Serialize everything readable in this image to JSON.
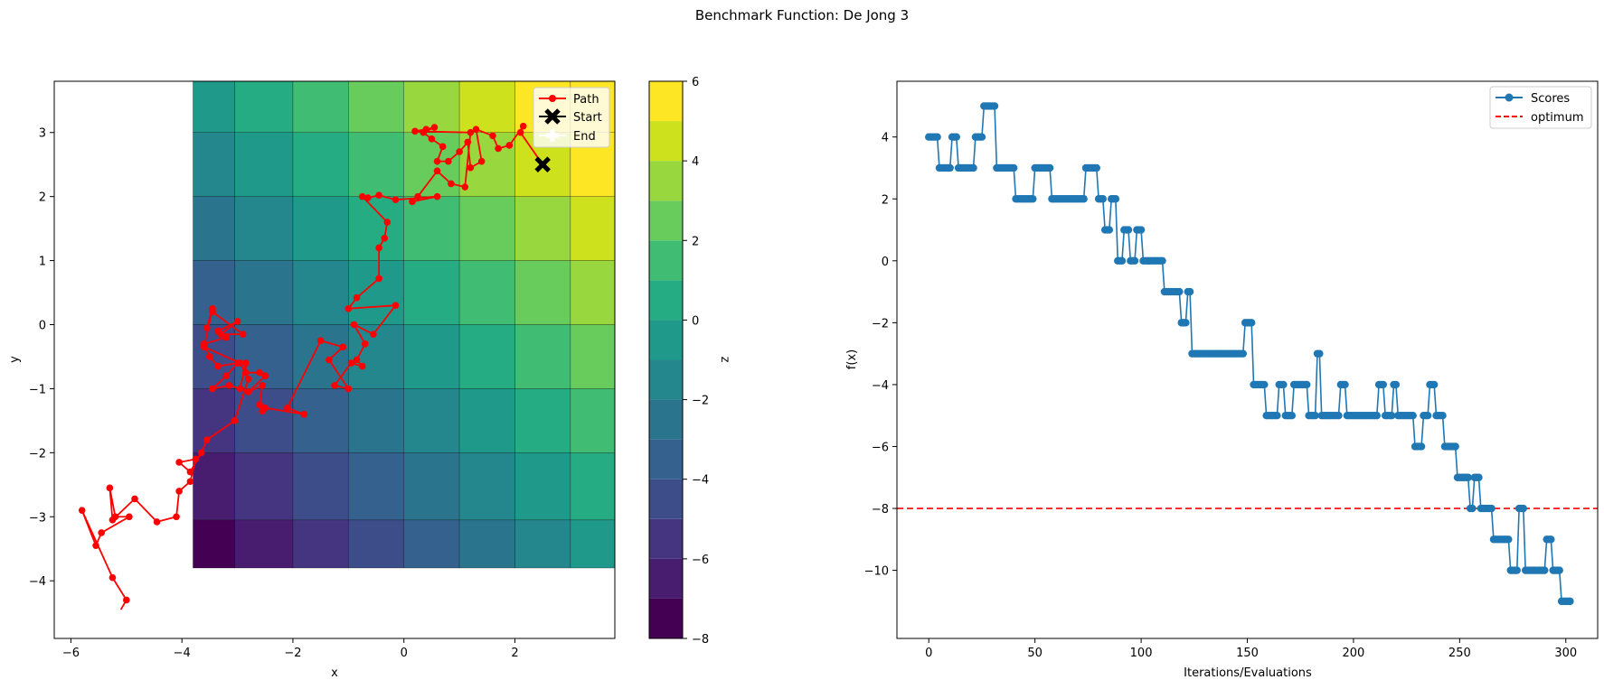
{
  "figure": {
    "suptitle": "Benchmark Function: De Jong 3"
  },
  "chart_data": [
    {
      "type": "heatmap",
      "subtype": "filled-contour-with-path",
      "title": "",
      "xlabel": "x",
      "ylabel": "y",
      "xlim": [
        -6.3,
        3.8
      ],
      "ylim": [
        -4.9,
        3.8
      ],
      "xticks": [
        -6,
        -4,
        -2,
        0,
        2
      ],
      "yticks": [
        -4,
        -3,
        -2,
        -1,
        0,
        1,
        2,
        3
      ],
      "surface": {
        "grid_x_edges": [
          -3.8,
          -3.05,
          -2,
          -1,
          0,
          1,
          2,
          3,
          3.8
        ],
        "grid_y_edges": [
          -3.8,
          -3.05,
          -2,
          -1,
          0,
          1,
          2,
          3,
          3.8
        ],
        "z_formula": "floor(x) + floor(y)"
      },
      "colorbar": {
        "label": "z",
        "levels": [
          -8,
          -7,
          -6,
          -5,
          -4,
          -3,
          -2,
          -1,
          0,
          1,
          2,
          3,
          4,
          5,
          6
        ],
        "ticks": [
          -8,
          -6,
          -4,
          -2,
          0,
          2,
          4,
          6
        ],
        "colors": [
          "#440154",
          "#481c6e",
          "#453581",
          "#3d4d8a",
          "#34618d",
          "#2b748e",
          "#24878e",
          "#1f998a",
          "#25ac82",
          "#40bd72",
          "#67cc5c",
          "#98d83e",
          "#cde11d",
          "#fde725"
        ]
      },
      "legend": {
        "position": "top-right",
        "entries": [
          {
            "label": "Path",
            "color": "#ff0000",
            "marker": "circle-line"
          },
          {
            "label": "Start",
            "color": "#000000",
            "marker": "x"
          },
          {
            "label": "End",
            "color": "#ffffff",
            "marker": "plus"
          }
        ]
      },
      "start": {
        "x": 2.5,
        "y": 2.5
      },
      "path": {
        "name": "Path",
        "color": "#ff0000",
        "points": [
          [
            2.5,
            2.5
          ],
          [
            2.1,
            3.0
          ],
          [
            2.15,
            3.1
          ],
          [
            1.9,
            2.8
          ],
          [
            1.7,
            2.75
          ],
          [
            1.6,
            2.95
          ],
          [
            1.3,
            3.05
          ],
          [
            1.4,
            2.55
          ],
          [
            1.2,
            2.45
          ],
          [
            1.15,
            2.85
          ],
          [
            1.0,
            2.7
          ],
          [
            0.8,
            2.55
          ],
          [
            0.6,
            2.55
          ],
          [
            0.7,
            2.78
          ],
          [
            0.5,
            2.9
          ],
          [
            0.35,
            3.0
          ],
          [
            0.55,
            3.08
          ],
          [
            0.4,
            3.05
          ],
          [
            0.2,
            3.02
          ],
          [
            1.2,
            3.0
          ],
          [
            1.1,
            2.15
          ],
          [
            0.85,
            2.2
          ],
          [
            0.6,
            2.4
          ],
          [
            0.25,
            2.0
          ],
          [
            0.15,
            1.92
          ],
          [
            0.6,
            2.0
          ],
          [
            -0.15,
            1.95
          ],
          [
            -0.45,
            2.02
          ],
          [
            -0.65,
            1.98
          ],
          [
            -0.75,
            2.0
          ],
          [
            -0.3,
            1.6
          ],
          [
            -0.35,
            1.35
          ],
          [
            -0.45,
            1.2
          ],
          [
            -0.45,
            0.72
          ],
          [
            -0.85,
            0.42
          ],
          [
            -1.0,
            0.25
          ],
          [
            -0.15,
            0.3
          ],
          [
            -0.55,
            -0.15
          ],
          [
            -0.9,
            0.0
          ],
          [
            -0.7,
            -0.3
          ],
          [
            -0.85,
            -0.55
          ],
          [
            -0.75,
            -0.65
          ],
          [
            -0.95,
            -0.6
          ],
          [
            -1.25,
            -0.95
          ],
          [
            -1.0,
            -1.0
          ],
          [
            -1.35,
            -0.55
          ],
          [
            -1.1,
            -0.35
          ],
          [
            -1.5,
            -0.25
          ],
          [
            -2.1,
            -1.3
          ],
          [
            -1.8,
            -1.4
          ],
          [
            -2.5,
            -1.3
          ],
          [
            -2.55,
            -1.35
          ],
          [
            -2.6,
            -1.25
          ],
          [
            -2.55,
            -0.95
          ],
          [
            -2.8,
            -1.05
          ],
          [
            -2.5,
            -0.8
          ],
          [
            -2.6,
            -0.75
          ],
          [
            -2.85,
            -0.75
          ],
          [
            -2.85,
            -0.6
          ],
          [
            -2.95,
            -1.0
          ],
          [
            -3.15,
            -0.95
          ],
          [
            -3.45,
            -1.0
          ],
          [
            -3.2,
            -0.8
          ],
          [
            -3.0,
            -0.6
          ],
          [
            -3.35,
            -0.65
          ],
          [
            -3.5,
            -0.5
          ],
          [
            -3.6,
            -0.3
          ],
          [
            -3.2,
            -0.2
          ],
          [
            -3.35,
            -0.1
          ],
          [
            -3.0,
            0.05
          ],
          [
            -3.3,
            -0.15
          ],
          [
            -2.9,
            -0.15
          ],
          [
            -3.45,
            0.2
          ],
          [
            -3.55,
            -0.05
          ],
          [
            -3.45,
            0.25
          ],
          [
            -3.6,
            -0.35
          ],
          [
            -2.95,
            -0.6
          ],
          [
            -2.8,
            -0.85
          ],
          [
            -3.05,
            -1.5
          ],
          [
            -3.55,
            -1.8
          ],
          [
            -3.65,
            -2.0
          ],
          [
            -3.85,
            -2.3
          ],
          [
            -4.05,
            -2.15
          ],
          [
            -3.75,
            -2.1
          ],
          [
            -3.85,
            -2.45
          ],
          [
            -4.05,
            -2.6
          ],
          [
            -4.1,
            -3.0
          ],
          [
            -4.45,
            -3.08
          ],
          [
            -4.85,
            -2.72
          ],
          [
            -5.25,
            -3.05
          ],
          [
            -5.3,
            -2.55
          ],
          [
            -5.2,
            -3.0
          ],
          [
            -4.95,
            -3.0
          ],
          [
            -5.45,
            -3.25
          ],
          [
            -5.55,
            -3.45
          ],
          [
            -5.8,
            -2.9
          ],
          [
            -5.25,
            -3.95
          ],
          [
            -5.0,
            -4.3
          ],
          [
            -5.1,
            -4.45
          ]
        ]
      }
    },
    {
      "type": "line",
      "title": "",
      "xlabel": "Iterations/Evaluations",
      "ylabel": "f(x)",
      "xlim": [
        -15,
        315
      ],
      "ylim": [
        -12.2,
        5.8
      ],
      "xticks": [
        0,
        50,
        100,
        150,
        200,
        250,
        300
      ],
      "yticks": [
        -10,
        -8,
        -6,
        -4,
        -2,
        0,
        2,
        4
      ],
      "legend": {
        "position": "top-right",
        "entries": [
          {
            "label": "Scores",
            "color": "#1f77b4",
            "marker": "circle-line"
          },
          {
            "label": "optimum",
            "color": "#ff0000",
            "marker": "dashed"
          }
        ]
      },
      "hline": {
        "name": "optimum",
        "y": -8,
        "color": "#ff0000",
        "style": "dashed"
      },
      "series": [
        {
          "name": "Scores",
          "color": "#1f77b4",
          "steps": [
            [
              0,
              4
            ],
            [
              4,
              4
            ],
            [
              5,
              3
            ],
            [
              10,
              3
            ],
            [
              11,
              4
            ],
            [
              13,
              4
            ],
            [
              14,
              3
            ],
            [
              21,
              3
            ],
            [
              22,
              4
            ],
            [
              25,
              4
            ],
            [
              26,
              5
            ],
            [
              31,
              5
            ],
            [
              32,
              3
            ],
            [
              40,
              3
            ],
            [
              41,
              2
            ],
            [
              49,
              2
            ],
            [
              50,
              3
            ],
            [
              57,
              3
            ],
            [
              58,
              2
            ],
            [
              73,
              2
            ],
            [
              74,
              3
            ],
            [
              79,
              3
            ],
            [
              80,
              2
            ],
            [
              82,
              2
            ],
            [
              83,
              1
            ],
            [
              85,
              1
            ],
            [
              86,
              2
            ],
            [
              88,
              2
            ],
            [
              89,
              0
            ],
            [
              91,
              0
            ],
            [
              92,
              1
            ],
            [
              94,
              1
            ],
            [
              95,
              0
            ],
            [
              97,
              0
            ],
            [
              98,
              1
            ],
            [
              100,
              1
            ],
            [
              101,
              0
            ],
            [
              110,
              0
            ],
            [
              111,
              -1
            ],
            [
              118,
              -1
            ],
            [
              119,
              -2
            ],
            [
              121,
              -2
            ],
            [
              122,
              -1
            ],
            [
              123,
              -1
            ],
            [
              124,
              -3
            ],
            [
              148,
              -3
            ],
            [
              149,
              -2
            ],
            [
              152,
              -2
            ],
            [
              153,
              -4
            ],
            [
              158,
              -4
            ],
            [
              159,
              -5
            ],
            [
              164,
              -5
            ],
            [
              165,
              -4
            ],
            [
              167,
              -4
            ],
            [
              168,
              -5
            ],
            [
              171,
              -5
            ],
            [
              172,
              -4
            ],
            [
              178,
              -4
            ],
            [
              179,
              -5
            ],
            [
              182,
              -5
            ],
            [
              183,
              -3
            ],
            [
              184,
              -3
            ],
            [
              185,
              -5
            ],
            [
              193,
              -5
            ],
            [
              194,
              -4
            ],
            [
              196,
              -4
            ],
            [
              197,
              -5
            ],
            [
              211,
              -5
            ],
            [
              212,
              -4
            ],
            [
              214,
              -4
            ],
            [
              215,
              -5
            ],
            [
              218,
              -5
            ],
            [
              219,
              -4
            ],
            [
              220,
              -4
            ],
            [
              221,
              -5
            ],
            [
              228,
              -5
            ],
            [
              229,
              -6
            ],
            [
              232,
              -6
            ],
            [
              233,
              -5
            ],
            [
              235,
              -5
            ],
            [
              236,
              -4
            ],
            [
              238,
              -4
            ],
            [
              239,
              -5
            ],
            [
              242,
              -5
            ],
            [
              243,
              -6
            ],
            [
              248,
              -6
            ],
            [
              249,
              -7
            ],
            [
              254,
              -7
            ],
            [
              255,
              -8
            ],
            [
              256,
              -8
            ],
            [
              257,
              -7
            ],
            [
              259,
              -7
            ],
            [
              260,
              -8
            ],
            [
              265,
              -8
            ],
            [
              266,
              -9
            ],
            [
              273,
              -9
            ],
            [
              274,
              -10
            ],
            [
              277,
              -10
            ],
            [
              278,
              -8
            ],
            [
              280,
              -8
            ],
            [
              281,
              -10
            ],
            [
              290,
              -10
            ],
            [
              291,
              -9
            ],
            [
              293,
              -9
            ],
            [
              294,
              -10
            ],
            [
              297,
              -10
            ],
            [
              298,
              -11
            ],
            [
              302,
              -11
            ]
          ]
        }
      ]
    }
  ]
}
